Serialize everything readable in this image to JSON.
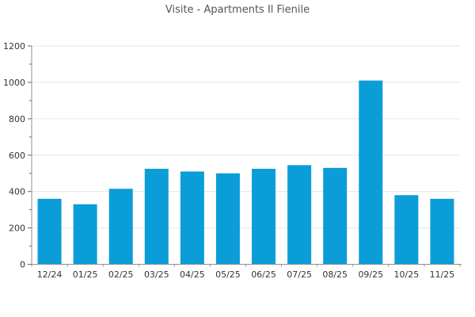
{
  "chart_data": {
    "type": "bar",
    "title": "Visite - Apartments Il Fienile",
    "categories": [
      "12/24",
      "01/25",
      "02/25",
      "03/25",
      "04/25",
      "05/25",
      "06/25",
      "07/25",
      "08/25",
      "09/25",
      "10/25",
      "11/25"
    ],
    "values": [
      360,
      330,
      415,
      525,
      510,
      500,
      525,
      545,
      530,
      1010,
      380,
      360
    ],
    "xlabel": "",
    "ylabel": "",
    "ylim": [
      0,
      1200
    ],
    "y_major_step": 200,
    "y_minor_step": 100,
    "grid": true,
    "legend": "none",
    "colors": {
      "bar": "#0b9dd8",
      "grid": "#e6e6e6",
      "axis": "#8f8f8f",
      "tick": "#666666",
      "tick_label": "#333333",
      "title": "#555555",
      "background": "#ffffff"
    }
  }
}
